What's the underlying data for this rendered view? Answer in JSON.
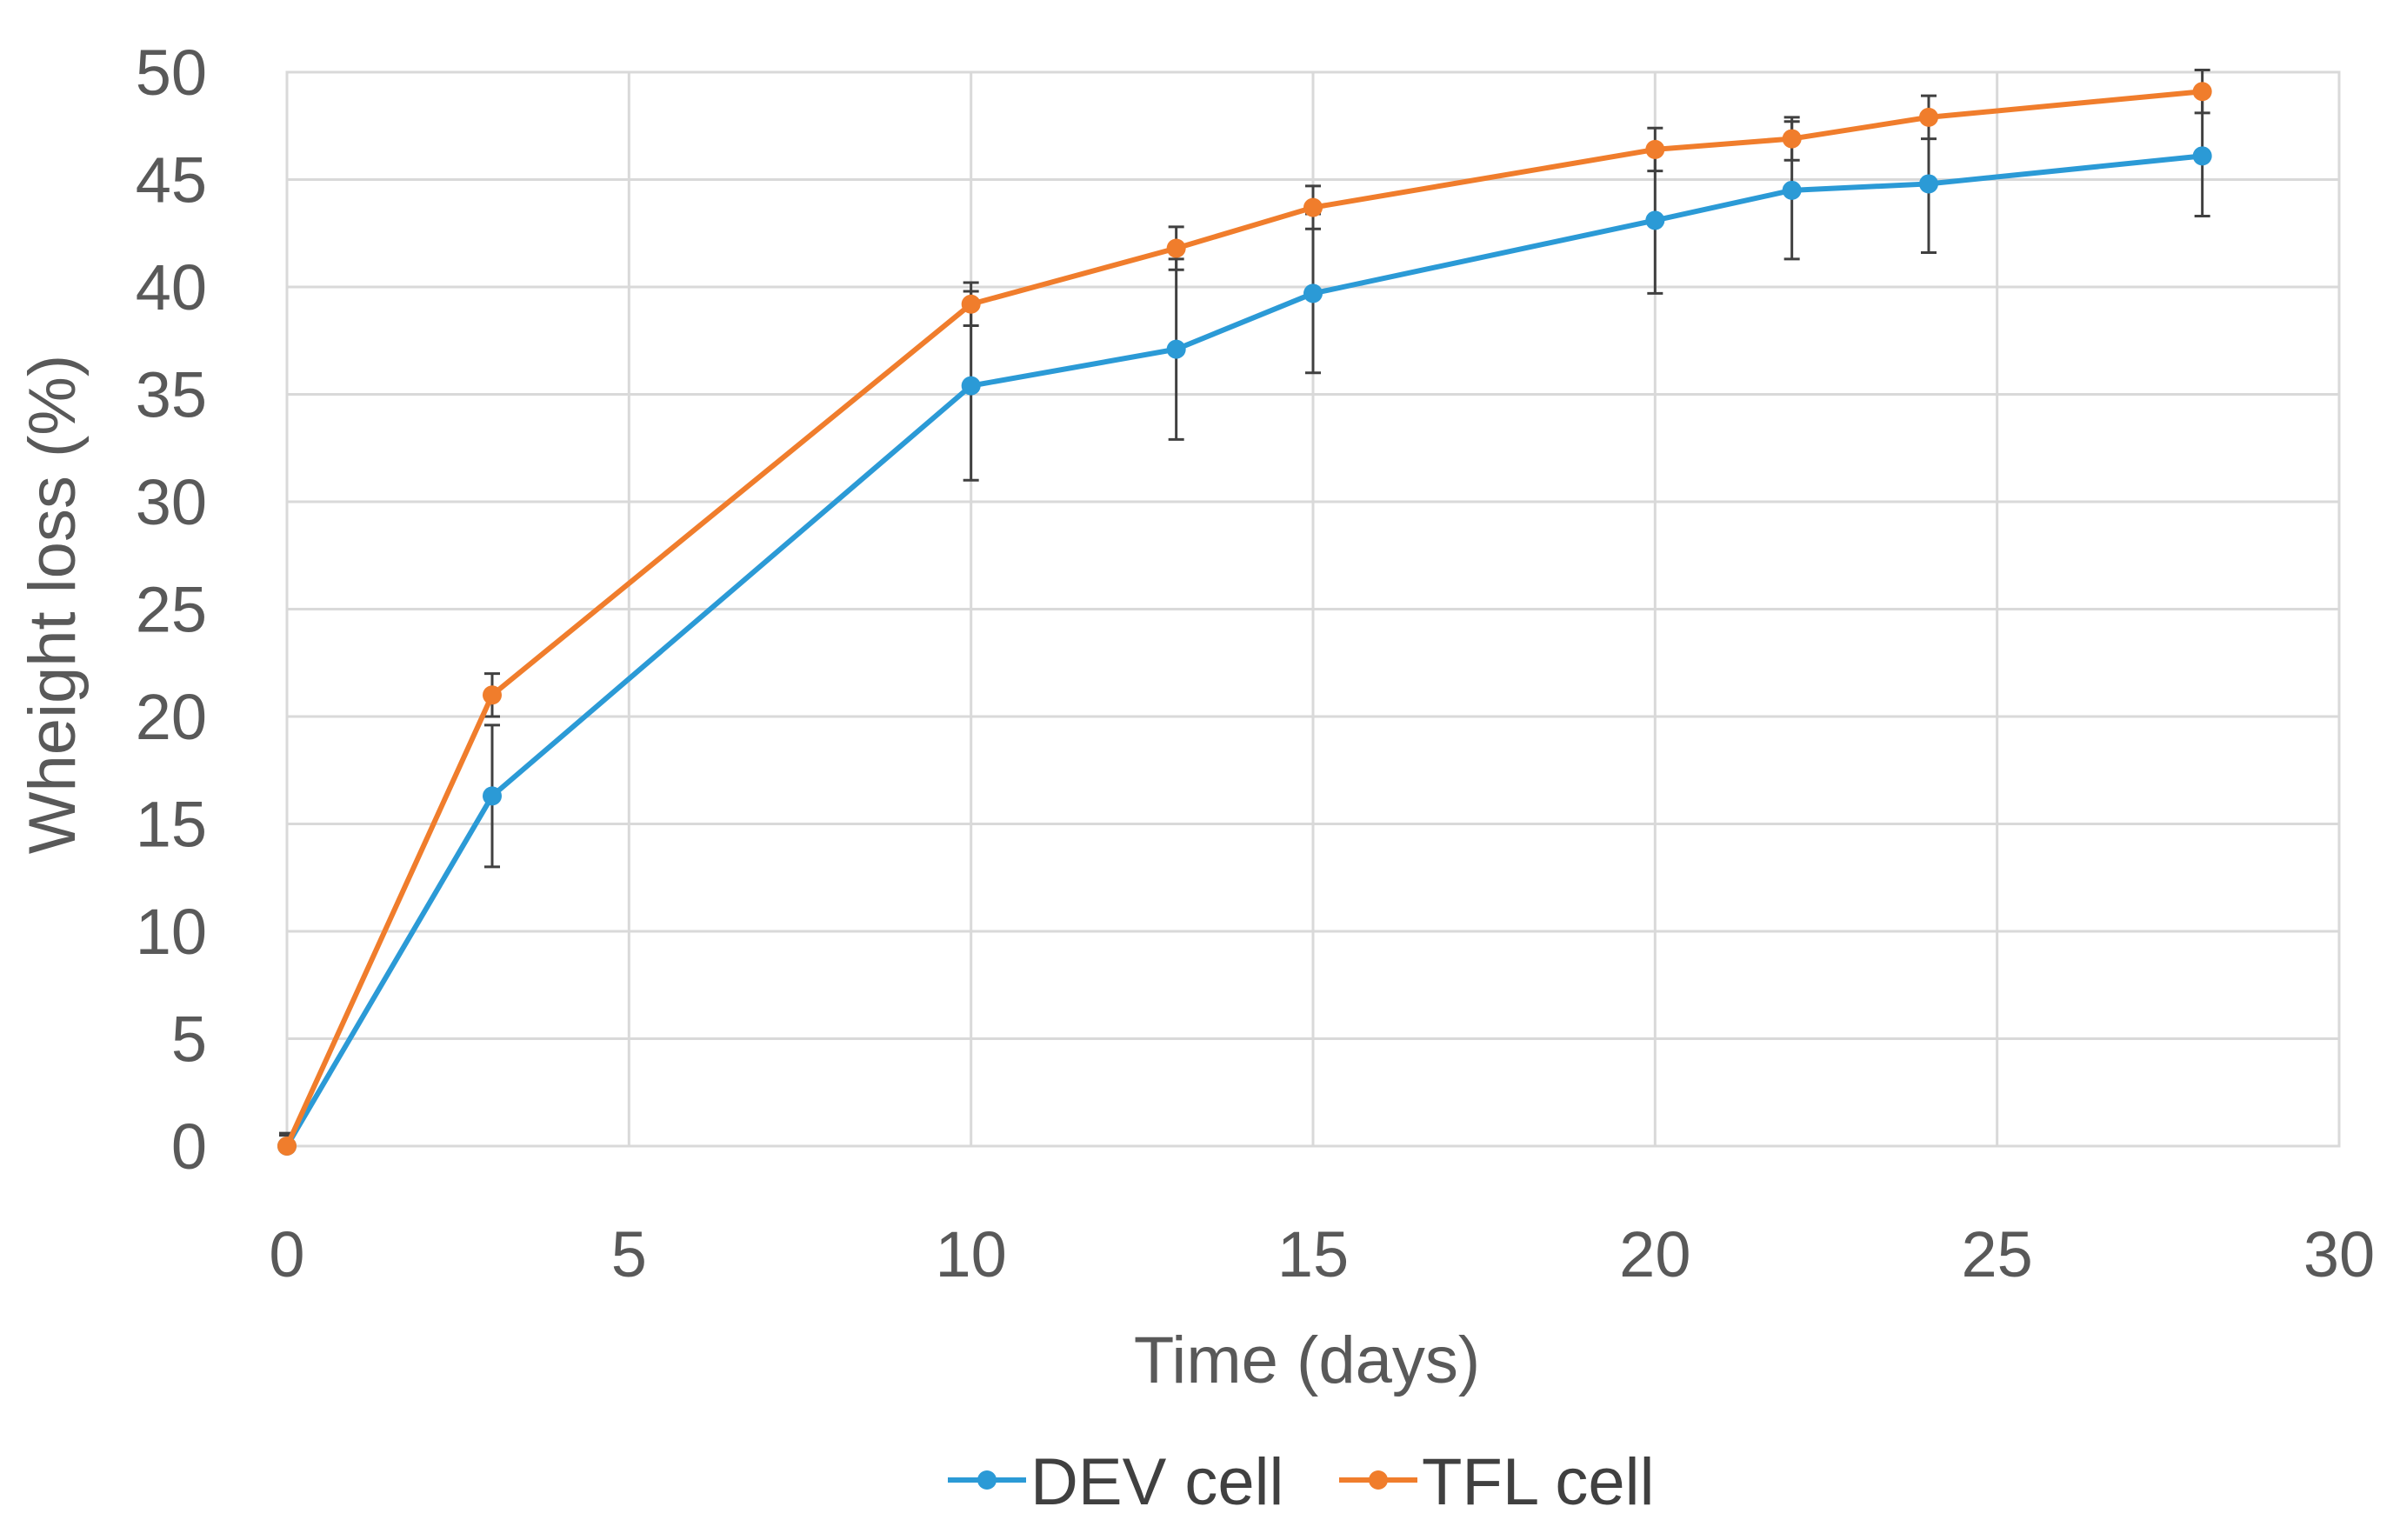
{
  "chart_data": {
    "type": "line",
    "title": "",
    "xlabel": "Time (days)",
    "ylabel": "Wheight loss (%)",
    "xlim": [
      0,
      30
    ],
    "ylim": [
      0,
      50
    ],
    "xticks": [
      0,
      5,
      10,
      15,
      20,
      25,
      30
    ],
    "yticks": [
      0,
      5,
      10,
      15,
      20,
      25,
      30,
      35,
      40,
      45,
      50
    ],
    "x_tick_labels": [
      "0",
      "5",
      "10",
      "15",
      "20",
      "25",
      "30"
    ],
    "y_tick_labels": [
      "0",
      "5",
      "10",
      "15",
      "20",
      "25",
      "30",
      "35",
      "40",
      "45",
      "50"
    ],
    "grid": true,
    "legend_position": "bottom-center",
    "series": [
      {
        "name": "DEV cell",
        "color": "#2b9ad6",
        "x": [
          0,
          3,
          10,
          13,
          15,
          20,
          22,
          24,
          28
        ],
        "y": [
          0,
          16.3,
          35.4,
          37.1,
          39.7,
          43.1,
          44.5,
          44.8,
          46.1
        ],
        "error": [
          0.6,
          3.3,
          4.4,
          4.2,
          3.7,
          3.4,
          3.2,
          3.2,
          2.8
        ]
      },
      {
        "name": "TFL cell",
        "color": "#f07d2c",
        "x": [
          0,
          3,
          10,
          13,
          15,
          20,
          22,
          24,
          28
        ],
        "y": [
          0,
          21.0,
          39.2,
          41.8,
          43.7,
          46.4,
          46.9,
          47.9,
          49.1
        ],
        "error": [
          0.5,
          1.0,
          1.0,
          1.0,
          1.0,
          1.0,
          1.0,
          1.0,
          1.0
        ]
      }
    ]
  }
}
